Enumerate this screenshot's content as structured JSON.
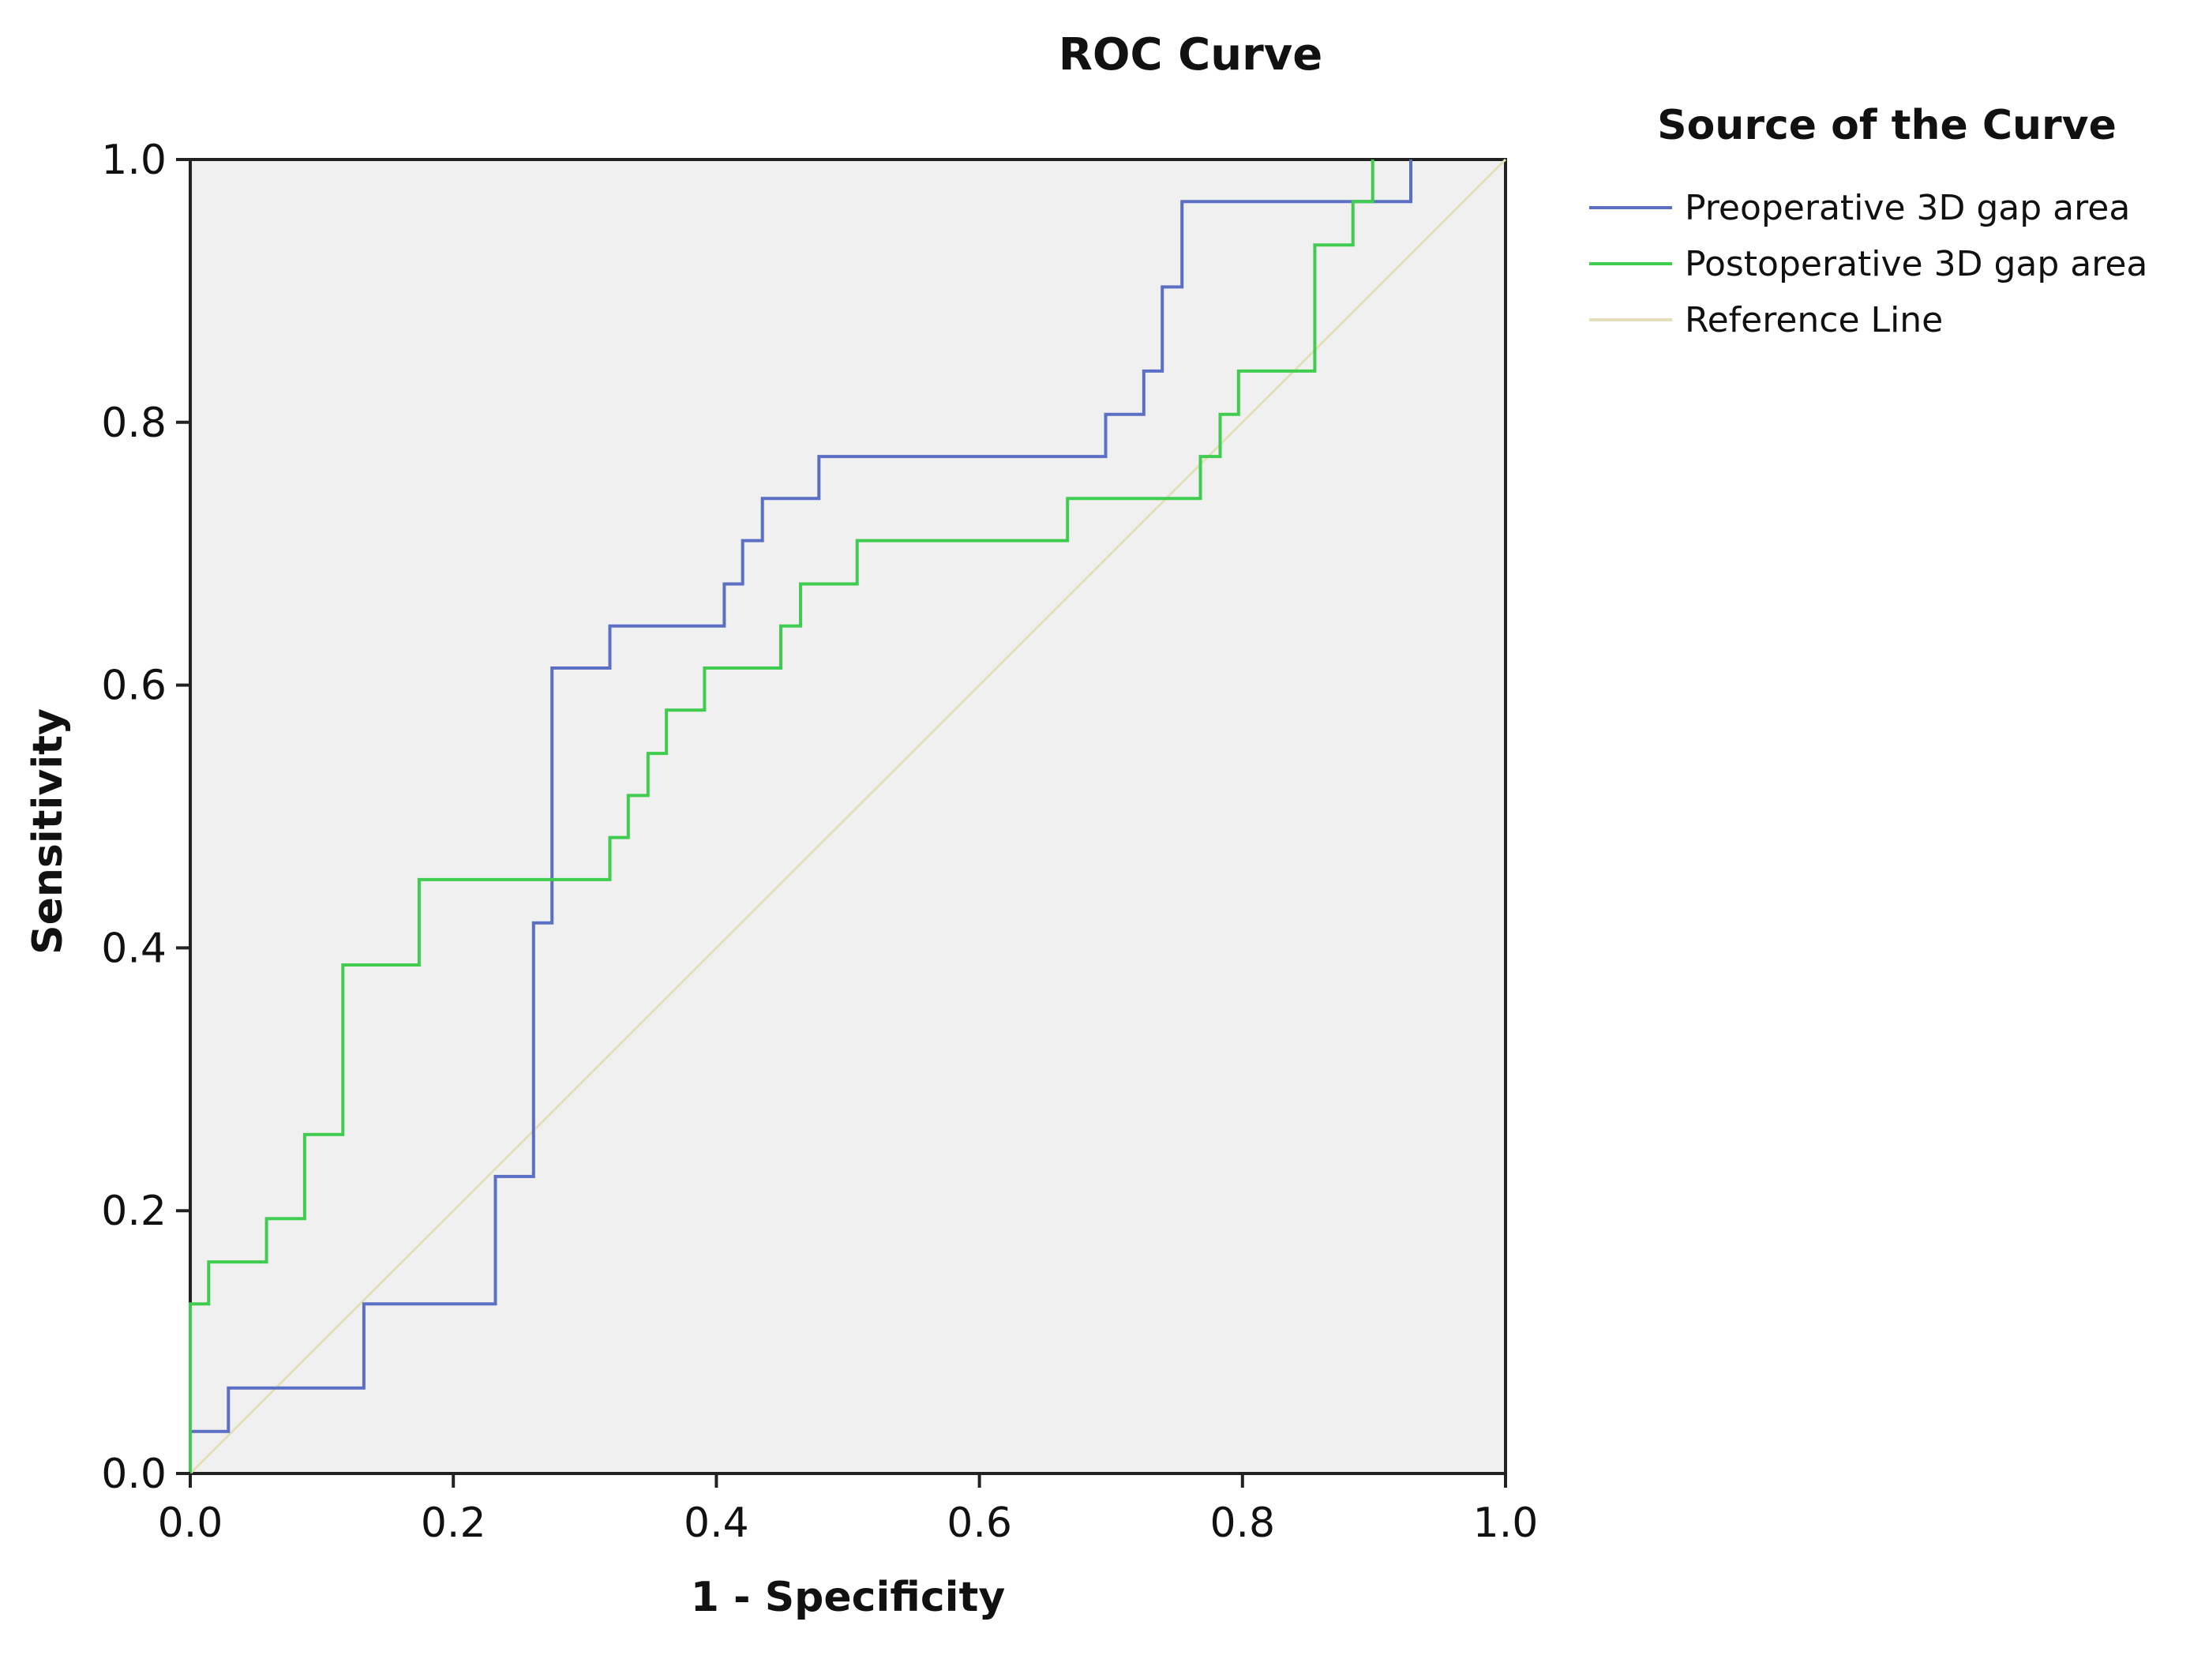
{
  "chart_data": {
    "type": "line",
    "title": "ROC Curve",
    "xlabel": "1 - Specificity",
    "ylabel": "Sensitivity",
    "xlim": [
      0.0,
      1.0
    ],
    "ylim": [
      0.0,
      1.0
    ],
    "x_ticks": [
      "0.0",
      "0.2",
      "0.4",
      "0.6",
      "0.8",
      "1.0"
    ],
    "y_ticks": [
      "0.0",
      "0.2",
      "0.4",
      "0.6",
      "0.8",
      "1.0"
    ],
    "grid": false,
    "legend_title": "Source of the Curve",
    "legend_position": "top-right, outside plot",
    "background_color": "#f0f0f0",
    "series": [
      {
        "name": "Preoperative 3D gap area",
        "color": "#5b6fc4",
        "points": [
          [
            0.0,
            0.0
          ],
          [
            0.0,
            0.032
          ],
          [
            0.029,
            0.032
          ],
          [
            0.029,
            0.065
          ],
          [
            0.132,
            0.065
          ],
          [
            0.132,
            0.129
          ],
          [
            0.232,
            0.129
          ],
          [
            0.232,
            0.226
          ],
          [
            0.261,
            0.226
          ],
          [
            0.261,
            0.419
          ],
          [
            0.275,
            0.419
          ],
          [
            0.275,
            0.613
          ],
          [
            0.319,
            0.613
          ],
          [
            0.319,
            0.645
          ],
          [
            0.406,
            0.645
          ],
          [
            0.406,
            0.677
          ],
          [
            0.42,
            0.677
          ],
          [
            0.42,
            0.71
          ],
          [
            0.435,
            0.71
          ],
          [
            0.435,
            0.742
          ],
          [
            0.478,
            0.742
          ],
          [
            0.478,
            0.774
          ],
          [
            0.696,
            0.774
          ],
          [
            0.696,
            0.806
          ],
          [
            0.725,
            0.806
          ],
          [
            0.725,
            0.839
          ],
          [
            0.739,
            0.839
          ],
          [
            0.739,
            0.903
          ],
          [
            0.754,
            0.903
          ],
          [
            0.754,
            0.968
          ],
          [
            0.928,
            0.968
          ],
          [
            0.928,
            1.0
          ]
        ]
      },
      {
        "name": "Postoperative 3D gap area",
        "color": "#3fcc4f",
        "points": [
          [
            0.0,
            0.0
          ],
          [
            0.0,
            0.129
          ],
          [
            0.014,
            0.129
          ],
          [
            0.014,
            0.161
          ],
          [
            0.058,
            0.161
          ],
          [
            0.058,
            0.194
          ],
          [
            0.087,
            0.194
          ],
          [
            0.087,
            0.258
          ],
          [
            0.116,
            0.258
          ],
          [
            0.116,
            0.387
          ],
          [
            0.174,
            0.387
          ],
          [
            0.174,
            0.452
          ],
          [
            0.319,
            0.452
          ],
          [
            0.319,
            0.484
          ],
          [
            0.333,
            0.484
          ],
          [
            0.333,
            0.516
          ],
          [
            0.348,
            0.516
          ],
          [
            0.348,
            0.548
          ],
          [
            0.362,
            0.548
          ],
          [
            0.362,
            0.581
          ],
          [
            0.391,
            0.581
          ],
          [
            0.391,
            0.613
          ],
          [
            0.449,
            0.613
          ],
          [
            0.449,
            0.645
          ],
          [
            0.464,
            0.645
          ],
          [
            0.464,
            0.677
          ],
          [
            0.507,
            0.677
          ],
          [
            0.507,
            0.71
          ],
          [
            0.667,
            0.71
          ],
          [
            0.667,
            0.742
          ],
          [
            0.768,
            0.742
          ],
          [
            0.768,
            0.774
          ],
          [
            0.783,
            0.774
          ],
          [
            0.783,
            0.806
          ],
          [
            0.797,
            0.806
          ],
          [
            0.797,
            0.839
          ],
          [
            0.855,
            0.839
          ],
          [
            0.855,
            0.935
          ],
          [
            0.884,
            0.935
          ],
          [
            0.884,
            0.968
          ],
          [
            0.899,
            0.968
          ],
          [
            0.899,
            1.0
          ]
        ]
      },
      {
        "name": "Reference Line",
        "color": "#e3e0b8",
        "points": [
          [
            0.0,
            0.0
          ],
          [
            1.0,
            1.0
          ]
        ]
      }
    ]
  }
}
